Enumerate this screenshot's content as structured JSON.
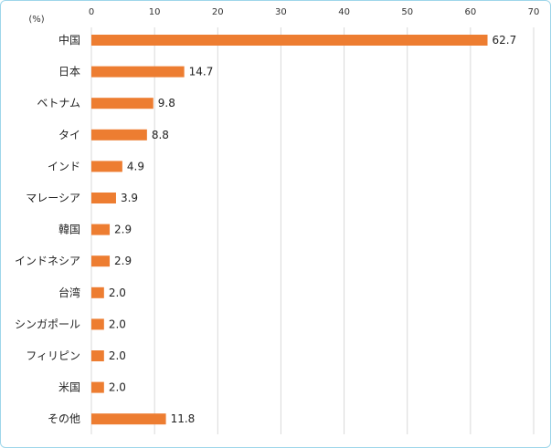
{
  "chart_data": {
    "type": "bar",
    "orientation": "horizontal",
    "unit_label": "(%)",
    "categories": [
      "中国",
      "日本",
      "ベトナム",
      "タイ",
      "インド",
      "マレーシア",
      "韓国",
      "インドネシア",
      "台湾",
      "シンガポール",
      "フィリピン",
      "米国",
      "その他"
    ],
    "values": [
      62.7,
      14.7,
      9.8,
      8.8,
      4.9,
      3.9,
      2.9,
      2.9,
      2.0,
      2.0,
      2.0,
      2.0,
      11.8
    ],
    "value_labels": [
      "62.7",
      "14.7",
      "9.8",
      "8.8",
      "4.9",
      "3.9",
      "2.9",
      "2.9",
      "2.0",
      "2.0",
      "2.0",
      "2.0",
      "11.8"
    ],
    "xlim": [
      0,
      70
    ],
    "xticks": [
      0,
      10,
      20,
      30,
      40,
      50,
      60,
      70
    ],
    "xtick_position": "top",
    "grid": true,
    "bar_color": "#ed7d31",
    "grid_color": "#d9d9d9"
  }
}
